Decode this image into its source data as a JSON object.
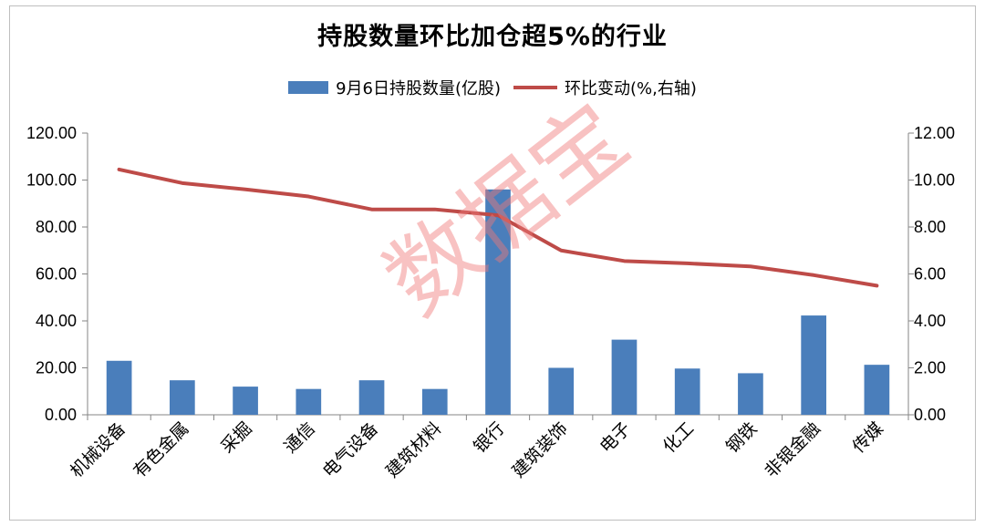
{
  "chart_data": {
    "type": "bar+line",
    "title": "持股数量环比加仓超5%的行业",
    "categories": [
      "机械设备",
      "有色金属",
      "采掘",
      "通信",
      "电气设备",
      "建筑材料",
      "银行",
      "建筑装饰",
      "电子",
      "化工",
      "钢铁",
      "非银金融",
      "传媒"
    ],
    "series": [
      {
        "name": "9月6日持股数量(亿股)",
        "type": "bar",
        "axis": "left",
        "color": "#4a7ebb",
        "values": [
          23.0,
          14.7,
          12.0,
          11.0,
          14.7,
          11.0,
          96.0,
          20.0,
          32.0,
          19.7,
          17.7,
          42.3,
          21.3
        ]
      },
      {
        "name": "环比变动(%,右轴)",
        "type": "line",
        "axis": "right",
        "color": "#be4b48",
        "values": [
          10.45,
          9.87,
          9.6,
          9.3,
          8.75,
          8.75,
          8.5,
          7.0,
          6.55,
          6.45,
          6.32,
          5.95,
          5.5
        ]
      }
    ],
    "left_axis": {
      "ylim": [
        0,
        120
      ],
      "ticks": [
        "0.00",
        "20.00",
        "40.00",
        "60.00",
        "80.00",
        "100.00",
        "120.00"
      ]
    },
    "right_axis": {
      "ylim": [
        0,
        12
      ],
      "ticks": [
        "0.00",
        "2.00",
        "4.00",
        "6.00",
        "8.00",
        "10.00",
        "12.00"
      ]
    },
    "legend_position": "top",
    "grid": false
  },
  "watermark": "数据宝"
}
